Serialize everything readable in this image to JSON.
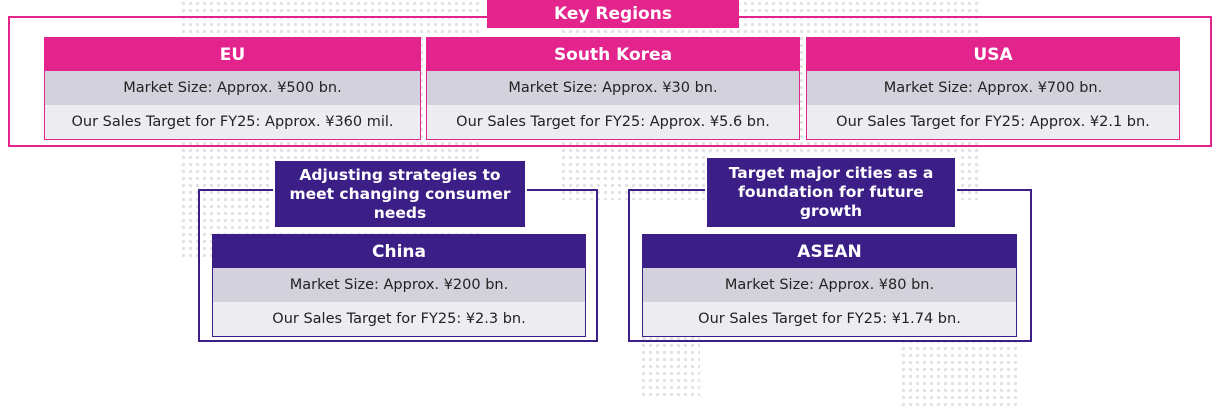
{
  "key_regions": {
    "title": "Key Regions",
    "regions": [
      {
        "name": "EU",
        "market_size": "Market Size: Approx. ¥500 bn.",
        "sales_target": "Our Sales Target for FY25: Approx. ¥360 mil."
      },
      {
        "name": "South Korea",
        "market_size": "Market Size: Approx. ¥30 bn.",
        "sales_target": "Our Sales Target for FY25: Approx. ¥5.6 bn."
      },
      {
        "name": "USA",
        "market_size": "Market Size: Approx. ¥700 bn.",
        "sales_target": "Our Sales Target for FY25: Approx. ¥2.1 bn."
      }
    ]
  },
  "other_regions": [
    {
      "note": "Adjusting strategies to meet changing consumer needs",
      "name": "China",
      "market_size": "Market Size: Approx. ¥200 bn.",
      "sales_target": "Our Sales Target for FY25: ¥2.3 bn."
    },
    {
      "note": "Target major cities as a foundation for future growth",
      "name": "ASEAN",
      "market_size": "Market Size: Approx. ¥80 bn.",
      "sales_target": "Our Sales Target for FY25: ¥1.74 bn."
    }
  ]
}
